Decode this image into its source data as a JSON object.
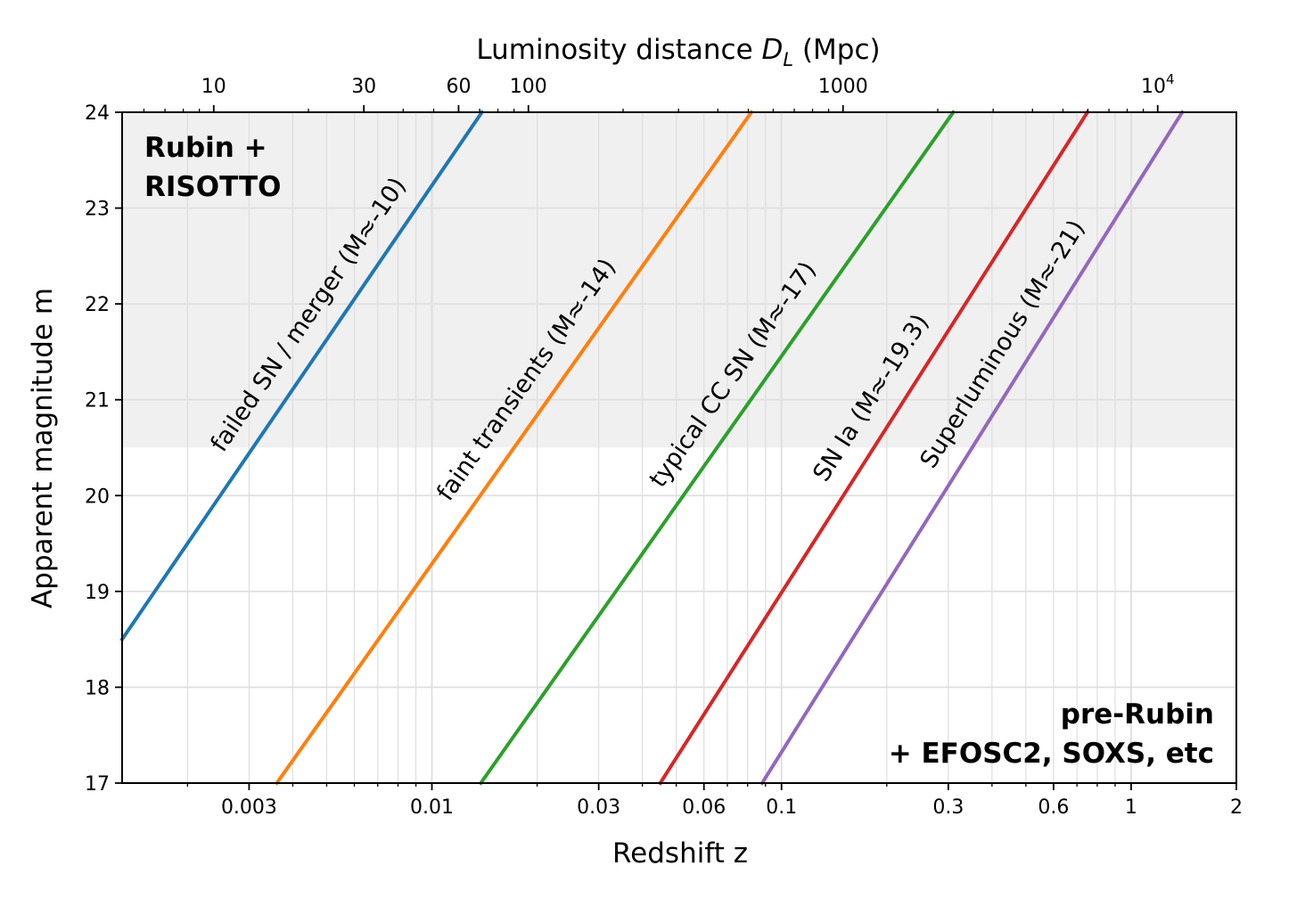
{
  "chart_data": {
    "type": "line",
    "xlabel": "Redshift z",
    "x_scale": "log",
    "xlim": [
      0.0013,
      2
    ],
    "ylabel": "Apparent magnitude m",
    "ylim": [
      17,
      24
    ],
    "top_axis_label_parts": [
      "Luminosity distance ",
      "D",
      "L",
      " (Mpc)"
    ],
    "top_axis_unit": "Mpc",
    "top_axis_scale": "log",
    "grid": true,
    "x_ticks": [
      {
        "value": 0.003,
        "label": "0.003"
      },
      {
        "value": 0.01,
        "label": "0.01"
      },
      {
        "value": 0.03,
        "label": "0.03"
      },
      {
        "value": 0.06,
        "label": "0.06"
      },
      {
        "value": 0.1,
        "label": "0.1"
      },
      {
        "value": 0.3,
        "label": "0.3"
      },
      {
        "value": 0.6,
        "label": "0.6"
      },
      {
        "value": 1,
        "label": "1"
      },
      {
        "value": 2,
        "label": "2"
      }
    ],
    "y_ticks": [
      17,
      18,
      19,
      20,
      21,
      22,
      23,
      24
    ],
    "top_ticks": [
      {
        "value_mpc": 10,
        "label": "10"
      },
      {
        "value_mpc": 30,
        "label": "30"
      },
      {
        "value_mpc": 60,
        "label": "60"
      },
      {
        "value_mpc": 100,
        "label": "100"
      },
      {
        "value_mpc": 1000,
        "label": "1000"
      },
      {
        "value_mpc": 10000,
        "label_base": "10",
        "label_exp": "4"
      }
    ],
    "shaded_region": {
      "y_from": 20.5,
      "y_to": 24,
      "color": "#f0f0f0",
      "label_lines": [
        "Rubin +",
        "RISOTTO"
      ]
    },
    "unshaded_region": {
      "label_lines": [
        "pre-Rubin",
        "+ EFOSC2, SOXS, etc"
      ]
    },
    "series": [
      {
        "name": "failed SN / merger (M≈-10)",
        "color": "#1f77b4",
        "points": [
          {
            "z": 0.0013,
            "m": 18.5
          },
          {
            "z": 0.0139,
            "m": 24
          }
        ]
      },
      {
        "name": "faint transients (M≈-14)",
        "color": "#ff7f0e",
        "points": [
          {
            "z": 0.0036,
            "m": 17
          },
          {
            "z": 0.082,
            "m": 24
          }
        ]
      },
      {
        "name": "typical CC SN (M≈-17)",
        "color": "#2ca02c",
        "points": [
          {
            "z": 0.0138,
            "m": 17
          },
          {
            "z": 0.31,
            "m": 24
          }
        ]
      },
      {
        "name": "SN Ia (M≈-19.3)",
        "color": "#d62728",
        "points": [
          {
            "z": 0.045,
            "m": 17
          },
          {
            "z": 0.75,
            "m": 24
          }
        ]
      },
      {
        "name": "Superluminous (M≈-21)",
        "color": "#9467bd",
        "points": [
          {
            "z": 0.088,
            "m": 17
          },
          {
            "z": 1.4,
            "m": 24
          }
        ]
      }
    ]
  }
}
